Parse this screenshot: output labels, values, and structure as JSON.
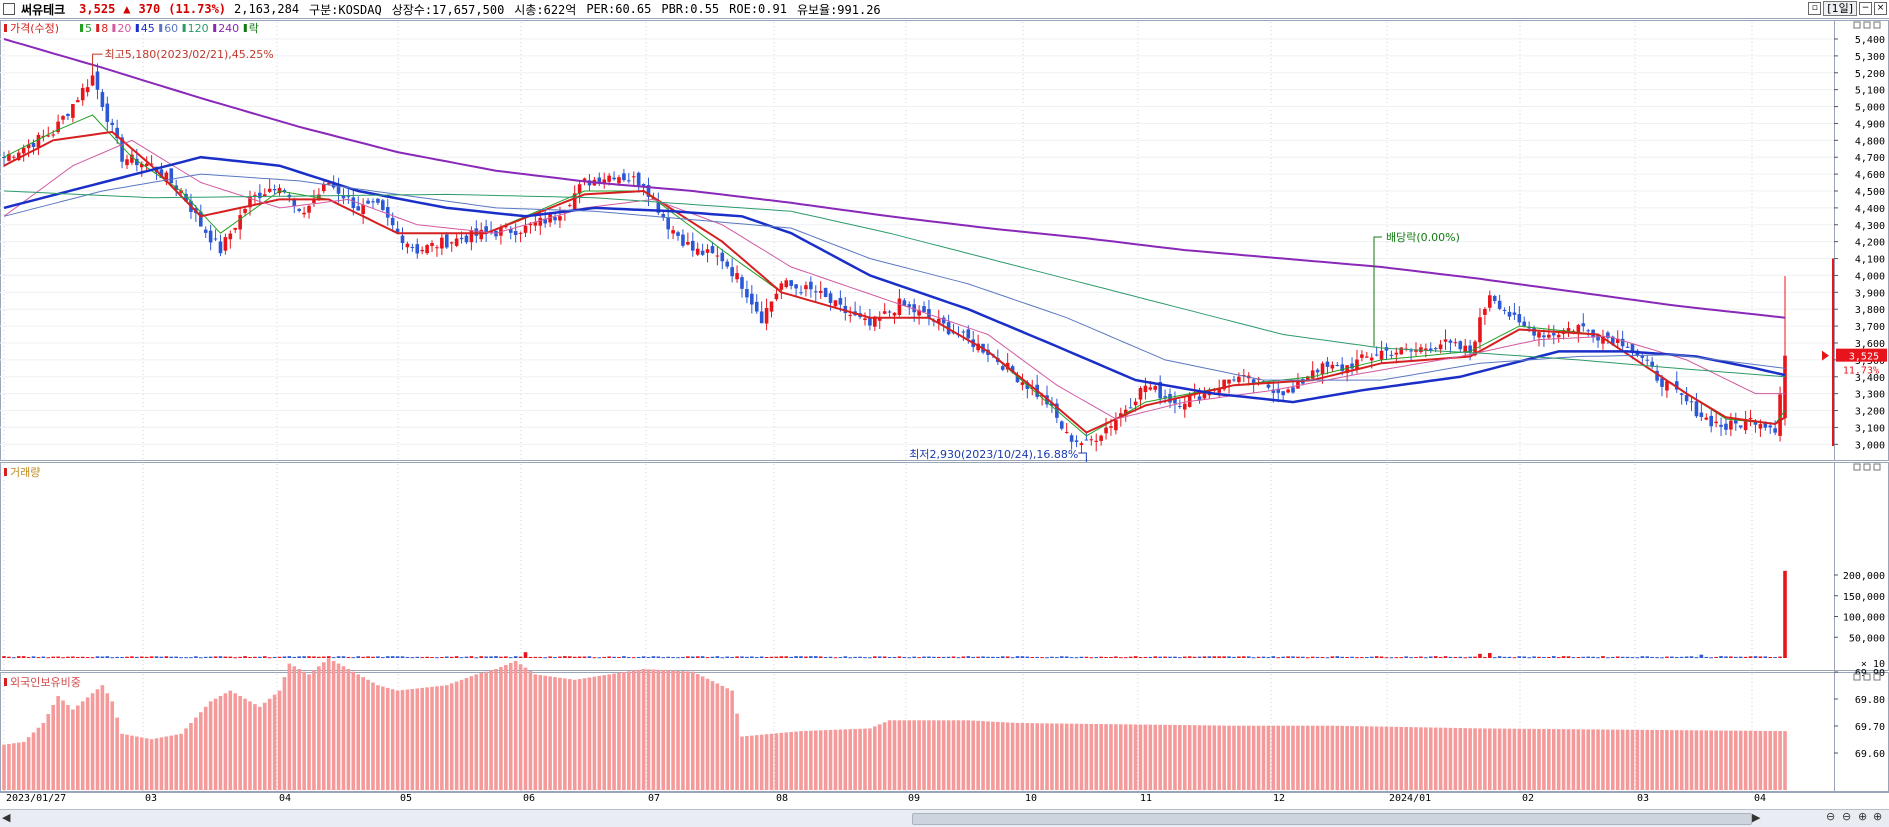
{
  "header": {
    "stock_name": "써유테크",
    "price": "3,525",
    "change_arrow": "▲",
    "change": "370",
    "change_pct": "(11.73%)",
    "volume": "2,163,284",
    "market": "구분:KOSDAQ",
    "shares": "상장수:17,657,500",
    "market_cap": "시총:622억",
    "per": "PER:60.65",
    "pbr": "PBR:0.55",
    "roe": "ROE:0.91",
    "reserve": "유보율:991.26",
    "period_button": "[1일]"
  },
  "colors": {
    "up": "#e8141c",
    "down": "#2c58d6",
    "ma5": "#22a022",
    "ma8": "#d62020",
    "ma20": "#d25aa0",
    "ma45": "#1a2fc8",
    "ma60": "#5a78c0",
    "ma120": "#2e9a6a",
    "ma240": "#8a28b8",
    "foreign": "#f59a9a"
  },
  "price_panel": {
    "legend": [
      {
        "label": "가격(수정)",
        "color": "#d62020"
      },
      {
        "label": "5",
        "color": "#22a022"
      },
      {
        "label": "8",
        "color": "#d62020"
      },
      {
        "label": "20",
        "color": "#d25aa0"
      },
      {
        "label": "45",
        "color": "#1a2fc8"
      },
      {
        "label": "60",
        "color": "#5a78c0"
      },
      {
        "label": "120",
        "color": "#2e9a6a"
      },
      {
        "label": "240",
        "color": "#8a28b8"
      },
      {
        "label": "락",
        "color": "#107a10"
      }
    ],
    "y_ticks": [
      "5,400",
      "5,300",
      "5,200",
      "5,100",
      "5,000",
      "4,900",
      "4,800",
      "4,700",
      "4,600",
      "4,500",
      "4,400",
      "4,300",
      "4,200",
      "4,100",
      "4,000",
      "3,900",
      "3,800",
      "3,700",
      "3,600",
      "3,500",
      "3,400",
      "3,300",
      "3,200",
      "3,100",
      "3,000"
    ],
    "current_price_label": "3,525",
    "current_pct_label": "11.73%",
    "high_annotation": "최고5,180(2023/02/21),45.25%",
    "low_annotation": "최저2,930(2023/10/24),16.88%",
    "dividend_annotation": "배당락(0.00%)"
  },
  "volume_panel": {
    "title": "거래량",
    "y_ticks": [
      "200,000",
      "150,000",
      "100,000",
      "50,000"
    ],
    "unit": "× 10"
  },
  "foreign_panel": {
    "title": "외국인보유비중",
    "y_ticks": [
      "69.90",
      "69.80",
      "69.70",
      "69.60"
    ]
  },
  "x_axis": {
    "labels": [
      "2023/01/27",
      "03",
      "04",
      "05",
      "06",
      "07",
      "08",
      "09",
      "10",
      "11",
      "12",
      "2024/01",
      "02",
      "03",
      "04"
    ]
  },
  "chart_data": {
    "type": "candlestick",
    "title": "",
    "period": "daily",
    "x_range": [
      "2023/01/27",
      "2024/04"
    ],
    "price_axis": {
      "min": 2930,
      "max": 5400
    },
    "highlights": {
      "high": {
        "value": 5180,
        "date": "2023/02/21",
        "pct": "45.25%"
      },
      "low": {
        "value": 2930,
        "date": "2023/10/24",
        "pct": "16.88%"
      },
      "last": {
        "value": 3525,
        "change": 370,
        "pct": 11.73
      },
      "dividend": {
        "date": "2023/12",
        "pct": "0.00%"
      }
    },
    "price_path": [
      [
        0,
        4700
      ],
      [
        10,
        4850
      ],
      [
        18,
        5180
      ],
      [
        24,
        4700
      ],
      [
        30,
        4650
      ],
      [
        36,
        4500
      ],
      [
        40,
        4300
      ],
      [
        44,
        4150
      ],
      [
        50,
        4450
      ],
      [
        56,
        4550
      ],
      [
        60,
        4350
      ],
      [
        66,
        4550
      ],
      [
        72,
        4400
      ],
      [
        76,
        4400
      ],
      [
        80,
        4250
      ],
      [
        84,
        4150
      ],
      [
        90,
        4200
      ],
      [
        98,
        4250
      ],
      [
        106,
        4280
      ],
      [
        112,
        4350
      ],
      [
        118,
        4550
      ],
      [
        124,
        4600
      ],
      [
        130,
        4550
      ],
      [
        135,
        4300
      ],
      [
        140,
        4150
      ],
      [
        146,
        4100
      ],
      [
        150,
        3950
      ],
      [
        154,
        3750
      ],
      [
        158,
        3950
      ],
      [
        165,
        3900
      ],
      [
        170,
        3800
      ],
      [
        176,
        3700
      ],
      [
        182,
        3830
      ],
      [
        188,
        3750
      ],
      [
        194,
        3650
      ],
      [
        200,
        3550
      ],
      [
        206,
        3400
      ],
      [
        212,
        3250
      ],
      [
        216,
        3050
      ],
      [
        220,
        3000
      ],
      [
        226,
        3150
      ],
      [
        232,
        3350
      ],
      [
        238,
        3250
      ],
      [
        244,
        3300
      ],
      [
        250,
        3400
      ],
      [
        256,
        3350
      ],
      [
        262,
        3300
      ],
      [
        266,
        3450
      ],
      [
        272,
        3450
      ],
      [
        280,
        3550
      ],
      [
        286,
        3550
      ],
      [
        292,
        3600
      ],
      [
        298,
        3550
      ],
      [
        302,
        3900
      ],
      [
        308,
        3700
      ],
      [
        314,
        3650
      ],
      [
        320,
        3700
      ],
      [
        324,
        3650
      ],
      [
        330,
        3600
      ],
      [
        336,
        3400
      ],
      [
        342,
        3250
      ],
      [
        346,
        3150
      ],
      [
        350,
        3100
      ],
      [
        356,
        3150
      ],
      [
        360,
        3100
      ],
      [
        362,
        3525
      ]
    ],
    "ma_series": [
      {
        "name": "5",
        "color_key": "ma5",
        "values": [
          [
            0,
            4700
          ],
          [
            10,
            4850
          ],
          [
            18,
            4950
          ],
          [
            26,
            4700
          ],
          [
            36,
            4500
          ],
          [
            44,
            4250
          ],
          [
            56,
            4500
          ],
          [
            66,
            4450
          ],
          [
            80,
            4250
          ],
          [
            98,
            4250
          ],
          [
            118,
            4500
          ],
          [
            130,
            4500
          ],
          [
            146,
            4150
          ],
          [
            158,
            3900
          ],
          [
            176,
            3750
          ],
          [
            188,
            3750
          ],
          [
            200,
            3550
          ],
          [
            212,
            3250
          ],
          [
            220,
            3050
          ],
          [
            232,
            3250
          ],
          [
            250,
            3350
          ],
          [
            266,
            3400
          ],
          [
            280,
            3500
          ],
          [
            298,
            3550
          ],
          [
            308,
            3700
          ],
          [
            324,
            3650
          ],
          [
            342,
            3300
          ],
          [
            350,
            3150
          ],
          [
            360,
            3120
          ],
          [
            362,
            3200
          ]
        ]
      },
      {
        "name": "8",
        "color_key": "ma8",
        "values": [
          [
            0,
            4650
          ],
          [
            10,
            4800
          ],
          [
            22,
            4850
          ],
          [
            30,
            4650
          ],
          [
            40,
            4350
          ],
          [
            56,
            4450
          ],
          [
            66,
            4450
          ],
          [
            80,
            4250
          ],
          [
            98,
            4250
          ],
          [
            118,
            4480
          ],
          [
            130,
            4500
          ],
          [
            146,
            4200
          ],
          [
            158,
            3900
          ],
          [
            176,
            3750
          ],
          [
            188,
            3750
          ],
          [
            200,
            3550
          ],
          [
            212,
            3270
          ],
          [
            220,
            3070
          ],
          [
            232,
            3230
          ],
          [
            250,
            3350
          ],
          [
            266,
            3380
          ],
          [
            280,
            3480
          ],
          [
            298,
            3520
          ],
          [
            308,
            3680
          ],
          [
            324,
            3650
          ],
          [
            342,
            3300
          ],
          [
            350,
            3160
          ],
          [
            360,
            3120
          ],
          [
            362,
            3160
          ]
        ]
      },
      {
        "name": "20",
        "color_key": "ma20",
        "values": [
          [
            0,
            4350
          ],
          [
            14,
            4650
          ],
          [
            26,
            4800
          ],
          [
            40,
            4550
          ],
          [
            56,
            4400
          ],
          [
            70,
            4450
          ],
          [
            84,
            4300
          ],
          [
            100,
            4250
          ],
          [
            118,
            4400
          ],
          [
            132,
            4450
          ],
          [
            146,
            4300
          ],
          [
            160,
            4050
          ],
          [
            180,
            3850
          ],
          [
            200,
            3650
          ],
          [
            214,
            3350
          ],
          [
            226,
            3150
          ],
          [
            240,
            3250
          ],
          [
            258,
            3320
          ],
          [
            276,
            3420
          ],
          [
            296,
            3520
          ],
          [
            312,
            3620
          ],
          [
            326,
            3640
          ],
          [
            342,
            3500
          ],
          [
            356,
            3300
          ],
          [
            362,
            3300
          ]
        ]
      },
      {
        "name": "45",
        "color_key": "ma45",
        "values": [
          [
            0,
            4400
          ],
          [
            20,
            4550
          ],
          [
            40,
            4700
          ],
          [
            56,
            4650
          ],
          [
            72,
            4500
          ],
          [
            90,
            4400
          ],
          [
            106,
            4350
          ],
          [
            120,
            4400
          ],
          [
            136,
            4380
          ],
          [
            150,
            4350
          ],
          [
            160,
            4250
          ],
          [
            176,
            4000
          ],
          [
            196,
            3800
          ],
          [
            214,
            3580
          ],
          [
            230,
            3380
          ],
          [
            246,
            3300
          ],
          [
            262,
            3250
          ],
          [
            276,
            3320
          ],
          [
            296,
            3400
          ],
          [
            316,
            3550
          ],
          [
            330,
            3550
          ],
          [
            344,
            3520
          ],
          [
            356,
            3450
          ],
          [
            362,
            3410
          ]
        ]
      },
      {
        "name": "60",
        "color_key": "ma60",
        "values": [
          [
            0,
            4350
          ],
          [
            20,
            4500
          ],
          [
            40,
            4600
          ],
          [
            60,
            4560
          ],
          [
            80,
            4480
          ],
          [
            100,
            4400
          ],
          [
            120,
            4380
          ],
          [
            140,
            4330
          ],
          [
            160,
            4280
          ],
          [
            176,
            4100
          ],
          [
            196,
            3950
          ],
          [
            216,
            3750
          ],
          [
            236,
            3500
          ],
          [
            256,
            3380
          ],
          [
            280,
            3380
          ],
          [
            300,
            3480
          ],
          [
            320,
            3520
          ],
          [
            340,
            3530
          ],
          [
            362,
            3450
          ]
        ]
      },
      {
        "name": "120",
        "color_key": "ma120",
        "values": [
          [
            0,
            4500
          ],
          [
            30,
            4460
          ],
          [
            60,
            4470
          ],
          [
            90,
            4480
          ],
          [
            120,
            4460
          ],
          [
            140,
            4420
          ],
          [
            160,
            4380
          ],
          [
            180,
            4250
          ],
          [
            200,
            4100
          ],
          [
            220,
            3950
          ],
          [
            240,
            3800
          ],
          [
            260,
            3650
          ],
          [
            280,
            3570
          ],
          [
            300,
            3540
          ],
          [
            320,
            3500
          ],
          [
            340,
            3450
          ],
          [
            362,
            3400
          ]
        ]
      },
      {
        "name": "240",
        "color_key": "ma240",
        "values": [
          [
            0,
            5400
          ],
          [
            20,
            5230
          ],
          [
            40,
            5050
          ],
          [
            60,
            4880
          ],
          [
            80,
            4730
          ],
          [
            100,
            4620
          ],
          [
            120,
            4550
          ],
          [
            140,
            4500
          ],
          [
            160,
            4430
          ],
          [
            180,
            4350
          ],
          [
            200,
            4280
          ],
          [
            220,
            4220
          ],
          [
            240,
            4150
          ],
          [
            260,
            4100
          ],
          [
            280,
            4050
          ],
          [
            300,
            3980
          ],
          [
            320,
            3900
          ],
          [
            340,
            3820
          ],
          [
            362,
            3750
          ]
        ]
      }
    ],
    "volume": {
      "units": "×10",
      "spikes": [
        [
          106,
          14000
        ],
        [
          300,
          10000
        ],
        [
          302,
          12000
        ],
        [
          345,
          8000
        ],
        [
          362,
          210000
        ]
      ],
      "base": 3500
    },
    "foreign_ratio": {
      "values": [
        [
          0,
          69.62
        ],
        [
          4,
          69.63
        ],
        [
          8,
          69.7
        ],
        [
          11,
          69.8
        ],
        [
          14,
          69.75
        ],
        [
          20,
          69.84
        ],
        [
          22,
          69.78
        ],
        [
          24,
          69.66
        ],
        [
          30,
          69.64
        ],
        [
          36,
          69.66
        ],
        [
          42,
          69.78
        ],
        [
          46,
          69.82
        ],
        [
          52,
          69.76
        ],
        [
          56,
          69.82
        ],
        [
          58,
          69.92
        ],
        [
          62,
          69.88
        ],
        [
          66,
          69.94
        ],
        [
          72,
          69.88
        ],
        [
          76,
          69.84
        ],
        [
          80,
          69.82
        ],
        [
          90,
          69.84
        ],
        [
          96,
          69.88
        ],
        [
          100,
          69.9
        ],
        [
          104,
          69.93
        ],
        [
          108,
          69.88
        ],
        [
          116,
          69.86
        ],
        [
          130,
          69.9
        ],
        [
          140,
          69.89
        ],
        [
          148,
          69.82
        ],
        [
          150,
          69.65
        ],
        [
          156,
          69.66
        ],
        [
          162,
          69.67
        ],
        [
          176,
          69.68
        ],
        [
          180,
          69.71
        ],
        [
          196,
          69.71
        ],
        [
          206,
          69.7
        ],
        [
          250,
          69.69
        ],
        [
          270,
          69.69
        ],
        [
          300,
          69.68
        ],
        [
          362,
          69.67
        ]
      ]
    }
  }
}
